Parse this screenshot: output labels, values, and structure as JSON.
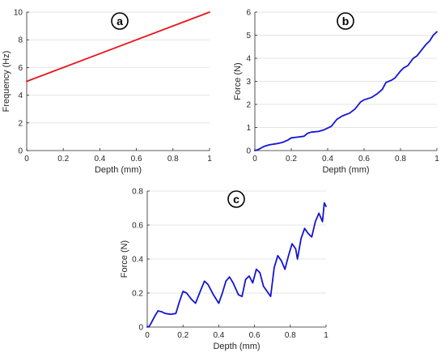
{
  "chart_data": [
    {
      "type": "line",
      "panel_label": "a",
      "xlabel": "Depth (mm)",
      "ylabel": "Frequency (Hz)",
      "xlim": [
        0,
        1
      ],
      "ylim": [
        0,
        10
      ],
      "xticks": [
        "0",
        "0.2",
        "0.4",
        "0.6",
        "0.8",
        "1"
      ],
      "yticks": [
        "0",
        "2",
        "4",
        "6",
        "8",
        "10"
      ],
      "grid": "horizontal",
      "series": [
        {
          "color": "#e8141b",
          "x": [
            0,
            1
          ],
          "y": [
            5,
            10
          ]
        }
      ]
    },
    {
      "type": "line",
      "panel_label": "b",
      "xlabel": "Depth (mm)",
      "ylabel": "Force (N)",
      "xlim": [
        0,
        1
      ],
      "ylim": [
        0,
        6
      ],
      "xticks": [
        "0",
        "0.2",
        "0.4",
        "0.6",
        "0.8",
        "1"
      ],
      "yticks": [
        "0",
        "1",
        "2",
        "3",
        "4",
        "5",
        "6"
      ],
      "grid": "horizontal",
      "series": [
        {
          "color": "#1414d4",
          "x": [
            0,
            0.02,
            0.05,
            0.08,
            0.12,
            0.15,
            0.18,
            0.2,
            0.23,
            0.27,
            0.29,
            0.31,
            0.35,
            0.38,
            0.42,
            0.45,
            0.48,
            0.52,
            0.55,
            0.58,
            0.6,
            0.64,
            0.67,
            0.7,
            0.72,
            0.75,
            0.77,
            0.8,
            0.82,
            0.84,
            0.87,
            0.89,
            0.91,
            0.94,
            0.96,
            0.98,
            1.0
          ],
          "y": [
            0,
            0.05,
            0.18,
            0.25,
            0.3,
            0.35,
            0.45,
            0.55,
            0.58,
            0.62,
            0.75,
            0.8,
            0.83,
            0.9,
            1.05,
            1.35,
            1.5,
            1.62,
            1.8,
            2.1,
            2.2,
            2.3,
            2.45,
            2.65,
            2.95,
            3.05,
            3.15,
            3.45,
            3.6,
            3.68,
            4.0,
            4.1,
            4.3,
            4.6,
            4.75,
            5.0,
            5.15
          ]
        }
      ]
    },
    {
      "type": "line",
      "panel_label": "c",
      "xlabel": "Depth (mm)",
      "ylabel": "Force (N)",
      "xlim": [
        0,
        1
      ],
      "ylim": [
        0,
        0.8
      ],
      "xticks": [
        "0",
        "0.2",
        "0.4",
        "0.6",
        "0.8",
        "1"
      ],
      "yticks": [
        "0",
        "0.2",
        "0.4",
        "0.6",
        "0.8"
      ],
      "grid": "horizontal",
      "series": [
        {
          "color": "#1414d4",
          "x": [
            0,
            0.01,
            0.02,
            0.04,
            0.06,
            0.08,
            0.1,
            0.13,
            0.16,
            0.18,
            0.2,
            0.22,
            0.25,
            0.27,
            0.3,
            0.32,
            0.34,
            0.37,
            0.4,
            0.42,
            0.44,
            0.46,
            0.48,
            0.51,
            0.53,
            0.55,
            0.57,
            0.59,
            0.61,
            0.63,
            0.65,
            0.67,
            0.69,
            0.71,
            0.73,
            0.75,
            0.77,
            0.79,
            0.81,
            0.83,
            0.84,
            0.86,
            0.88,
            0.9,
            0.92,
            0.94,
            0.96,
            0.98,
            0.99,
            1.0
          ],
          "y": [
            0,
            0.003,
            0.02,
            0.06,
            0.095,
            0.09,
            0.08,
            0.075,
            0.08,
            0.15,
            0.21,
            0.2,
            0.16,
            0.14,
            0.22,
            0.27,
            0.25,
            0.19,
            0.14,
            0.2,
            0.27,
            0.295,
            0.26,
            0.19,
            0.18,
            0.28,
            0.3,
            0.26,
            0.34,
            0.32,
            0.24,
            0.21,
            0.18,
            0.35,
            0.42,
            0.39,
            0.34,
            0.42,
            0.49,
            0.46,
            0.4,
            0.52,
            0.58,
            0.55,
            0.53,
            0.62,
            0.67,
            0.62,
            0.73,
            0.71
          ]
        }
      ]
    }
  ]
}
